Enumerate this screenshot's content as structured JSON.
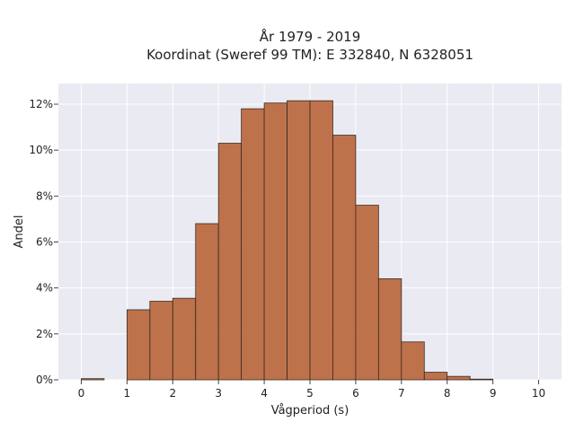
{
  "chart_data": {
    "type": "bar",
    "title_line1": "År 1979 - 2019",
    "title_line2": "Koordinat (Sweref 99 TM): E 332840, N 6328051",
    "xlabel": "Vågperiod (s)",
    "ylabel": "Andel",
    "bin_width": 0.5,
    "bin_starts": [
      0,
      0.5,
      1,
      1.5,
      2,
      2.5,
      3,
      3.5,
      4,
      4.5,
      5,
      5.5,
      6,
      6.5,
      7,
      7.5,
      8,
      8.5,
      9,
      9.5
    ],
    "values": [
      0.05,
      0,
      3.05,
      3.42,
      3.55,
      6.8,
      10.3,
      11.8,
      12.05,
      12.15,
      12.15,
      10.65,
      7.6,
      4.4,
      1.65,
      0.33,
      0.15,
      0.03,
      0,
      0
    ],
    "xlim": [
      -0.5,
      10.5
    ],
    "ylim": [
      0,
      12.9
    ],
    "xticks": [
      0,
      1,
      2,
      3,
      4,
      5,
      6,
      7,
      8,
      9,
      10
    ],
    "xtick_labels": [
      "0",
      "1",
      "2",
      "3",
      "4",
      "5",
      "6",
      "7",
      "8",
      "9",
      "10"
    ],
    "yticks": [
      0,
      2,
      4,
      6,
      8,
      10,
      12
    ],
    "ytick_labels": [
      "0%",
      "2%",
      "4%",
      "6%",
      "8%",
      "10%",
      "12%"
    ],
    "bar_color": "#b8653a",
    "bar_edge_color": "#3a2a1f",
    "background_color": "#eaeaf2",
    "grid": true,
    "grid_color": "#ffffff"
  }
}
